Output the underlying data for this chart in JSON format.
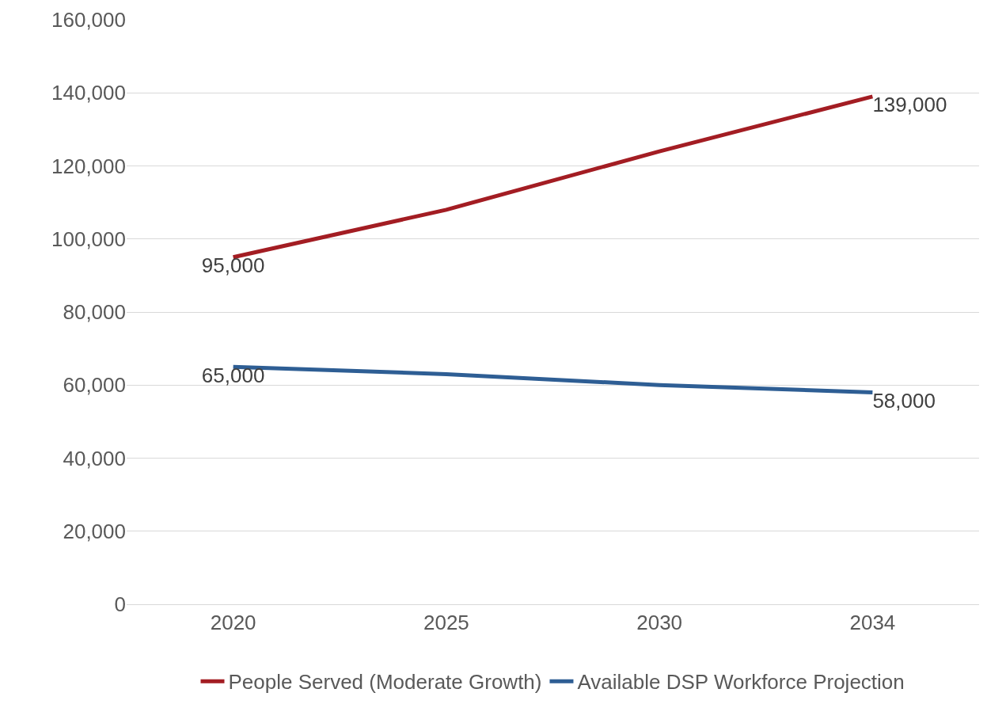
{
  "chart_data": {
    "type": "line",
    "categories": [
      "2020",
      "2025",
      "2030",
      "2034"
    ],
    "series": [
      {
        "name": "People Served (Moderate Growth)",
        "color": "#a31d23",
        "values": [
          95000,
          108000,
          124000,
          139000
        ],
        "value_labels": [
          "95,000",
          null,
          null,
          "139,000"
        ]
      },
      {
        "name": "Available DSP Workforce Projection",
        "color": "#2e5e94",
        "values": [
          65000,
          63000,
          60000,
          58000
        ],
        "value_labels": [
          "65,000",
          null,
          null,
          "58,000"
        ]
      }
    ],
    "ylim": [
      0,
      160000
    ],
    "yticks": [
      {
        "value": 0,
        "label": "0"
      },
      {
        "value": 20000,
        "label": "20,000"
      },
      {
        "value": 40000,
        "label": "40,000"
      },
      {
        "value": 60000,
        "label": "60,000"
      },
      {
        "value": 80000,
        "label": "80,000"
      },
      {
        "value": 100000,
        "label": "100,000"
      },
      {
        "value": 120000,
        "label": "120,000"
      },
      {
        "value": 140000,
        "label": "140,000"
      },
      {
        "value": 160000,
        "label": "160,000"
      }
    ],
    "grid": "y",
    "legend": "bottom",
    "marker": "none",
    "line_style": "solid"
  }
}
